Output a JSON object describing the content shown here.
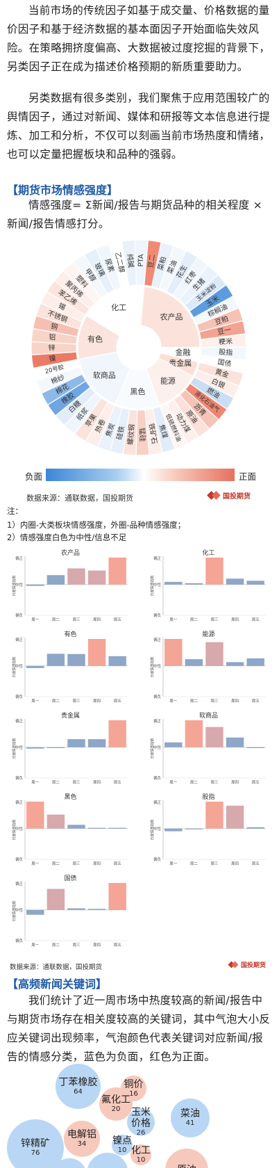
{
  "intro": {
    "p1": "当前市场的传统因子如基于成交量、价格数据的量价因子和基于经济数据的基本面因子开始面临失效风险。在策略拥挤度偏高、大数据被过度挖掘的背景下，另类因子正在成为描述价格预期的新质重要助力。",
    "p2": "另类数据有很多类别，我们聚焦于应用范围较广的舆情因子，通过对新闻、媒体和研报等文本信息进行提炼、加工和分析，不仅可以刻画当前市场热度和情绪，也可以定量把握板块和品种的强弱。"
  },
  "section1": {
    "title": "【期货市场情感强度】",
    "formula": "情感强度= Σ新闻/报告与期货品种的相关程度 × 新闻/报告情感打分。"
  },
  "sunburst": {
    "sectors": [
      {
        "name": "农产品",
        "color": "#fbe3dc",
        "items": [
          {
            "name": "豆二",
            "color": "#f08a75"
          },
          {
            "name": "菜粕",
            "color": "#e9f2fb"
          },
          {
            "name": "菜油",
            "color": "#f3f8fd"
          },
          {
            "name": "花生",
            "color": "#e3eefa"
          },
          {
            "name": "红枣",
            "color": "#f1f6fc"
          },
          {
            "name": "生猪",
            "color": "#eaf2fb"
          },
          {
            "name": "玉米淀粉",
            "color": "#dce9f8"
          },
          {
            "name": "玉米",
            "color": "#5e9ce0"
          },
          {
            "name": "棕榈油",
            "color": "#f3f8fd"
          },
          {
            "name": "豆粕",
            "color": "#f6c2b4"
          },
          {
            "name": "豆一",
            "color": "#f3a391"
          },
          {
            "name": "粳米",
            "color": "#fdf0ec"
          }
        ]
      },
      {
        "name": "金融",
        "color": "#ffffff",
        "items": [
          {
            "name": "股指",
            "color": "#f2f7fd"
          },
          {
            "name": "国债",
            "color": "#ffffff"
          }
        ]
      },
      {
        "name": "贵金属",
        "color": "#fbe0d8",
        "items": [
          {
            "name": "黄金",
            "color": "#fbe2da"
          },
          {
            "name": "白银",
            "color": "#fdeee9"
          }
        ]
      },
      {
        "name": "能源",
        "color": "#fdf0ec",
        "items": [
          {
            "name": "燃油",
            "color": "#c9ddf4"
          },
          {
            "name": "液化石油气",
            "color": "#ef8672"
          },
          {
            "name": "沥青",
            "color": "#f6c4b7"
          },
          {
            "name": "原油",
            "color": "#fbe1da"
          },
          {
            "name": "动力煤",
            "color": "#fdf0ec"
          },
          {
            "name": "低硫燃料油",
            "color": "#fef6f3"
          }
        ]
      },
      {
        "name": "黑色",
        "color": "#f8fbfe",
        "items": [
          {
            "name": "焦煤",
            "color": "#e2edf9"
          },
          {
            "name": "铁矿石",
            "color": "#fdeee9"
          },
          {
            "name": "锰硅",
            "color": "#f7d0c6"
          },
          {
            "name": "螺纹钢",
            "color": "#fbe3dc"
          },
          {
            "name": "硅铁",
            "color": "#e6f0fa"
          },
          {
            "name": "焦炭",
            "color": "#eaf2fb"
          }
        ]
      },
      {
        "name": "软商品",
        "color": "#f1f6fc",
        "items": [
          {
            "name": "热卷",
            "color": "#fdeee9"
          },
          {
            "name": "苹果",
            "color": "#fbe4dd"
          },
          {
            "name": "纸浆",
            "color": "#eef5fc"
          },
          {
            "name": "白糖",
            "color": "#e3edf9"
          },
          {
            "name": "橡胶",
            "color": "#6fa6e2"
          },
          {
            "name": "棉花",
            "color": "#8db9e8"
          },
          {
            "name": "棉纱",
            "color": "#f3f8fd"
          },
          {
            "name": "20号胶",
            "color": "#ffffff"
          }
        ]
      },
      {
        "name": "有色",
        "color": "#fbe4dd",
        "items": [
          {
            "name": "镍",
            "color": "#ec7b66"
          },
          {
            "name": "锌",
            "color": "#f8d3c8"
          },
          {
            "name": "铝",
            "color": "#f8d3c8"
          },
          {
            "name": "铜",
            "color": "#f5bfb1"
          },
          {
            "name": "不锈钢",
            "color": "#fbe2da"
          },
          {
            "name": "锡",
            "color": "#fdeee9"
          }
        ]
      },
      {
        "name": "化工",
        "color": "#ffffff",
        "items": [
          {
            "name": "苯乙烯",
            "color": "#fbe4dd"
          },
          {
            "name": "聚丙烯",
            "color": "#fdeee9"
          },
          {
            "name": "塑料",
            "color": "#fef5f2"
          },
          {
            "name": "甲醇",
            "color": "#f3f8fd"
          },
          {
            "name": "玻璃",
            "color": "#e6f0fa"
          },
          {
            "name": "尿素",
            "color": "#f0f6fc"
          },
          {
            "name": "乙二醇",
            "color": "#ffffff"
          },
          {
            "name": "纯碱",
            "color": "#e9f1fb"
          },
          {
            "name": "PTA",
            "color": "#eef5fc"
          }
        ]
      }
    ]
  },
  "legend": {
    "neg": "负面",
    "pos": "正面"
  },
  "source1": "数据来源：通联数据，国投期货",
  "logo": "国投期货",
  "notes": {
    "head": "注：",
    "n1": "1）内圈-大类板块情感强度，外圈-品种情感强度；",
    "n2": "2）情感强度白色为中性/信息不足"
  },
  "weekly": {
    "days": [
      "周一",
      "周二",
      "周三",
      "周四",
      "周五"
    ],
    "ylabel": "日度情感指数",
    "ticks": [
      "偏正",
      "中性",
      "偏负"
    ],
    "colors": {
      "positive": "#f4a596",
      "negative": "#8ea6c8",
      "mid": "#d7a8ac"
    },
    "charts": [
      {
        "title": "农产品",
        "values": [
          -0.05,
          0.35,
          0.6,
          0.52,
          1.0
        ]
      },
      {
        "title": "化工",
        "values": [
          0.1,
          0.05,
          1.0,
          0.22,
          0.14
        ]
      },
      {
        "title": "有色",
        "values": [
          -0.08,
          0.45,
          0.44,
          1.0,
          0.36
        ]
      },
      {
        "title": "能源",
        "values": [
          1.0,
          0.25,
          0.88,
          0.14,
          0.28
        ]
      },
      {
        "title": "贵金属",
        "values": [
          -0.05,
          -0.03,
          0.3,
          0.3,
          1.0
        ]
      },
      {
        "title": "软商品",
        "values": [
          0.18,
          1.0,
          0.75,
          0.36,
          -0.02
        ]
      },
      {
        "title": "黑色",
        "values": [
          1.0,
          0.52,
          0.14,
          0.03,
          0.03
        ]
      },
      {
        "title": "股指",
        "values": [
          -0.1,
          0.0,
          1.0,
          0.85,
          0.05
        ]
      },
      {
        "title": "国债",
        "values": [
          -0.18,
          0.78,
          0.06,
          0.04,
          1.0
        ]
      }
    ]
  },
  "source2": "数据来源：通联数据，国投期货",
  "section2": {
    "title": "【高频新闻关键词】",
    "text": "我们统计了近一周市场中热度较高的新闻/报告中与期货市场存在相关度较高的关键词，其中气泡大小反应关键词出现频率，气泡颜色代表关键词对应新闻/报告的情感分类，蓝色为负面，红色为正面。"
  },
  "bubbles": [
    {
      "label": "丁苯橡胶",
      "value": "64",
      "color": "#b9d7f4"
    },
    {
      "label": "铜价",
      "value": "16",
      "color": "#f6c9bd"
    },
    {
      "label": "氟化工",
      "value": "20",
      "color": "#f6c9bd"
    },
    {
      "label": "菜油",
      "value": "41",
      "color": "#b9d7f4"
    },
    {
      "label": "玉米价格",
      "value": "26",
      "color": "#b9d7f4"
    },
    {
      "label": "电解铝",
      "value": "34",
      "color": "#f6c9bd"
    },
    {
      "label": "锌精矿",
      "value": "76",
      "color": "#b9d7f4"
    },
    {
      "label": "镍点",
      "value": "10",
      "color": "#b9d7f4"
    },
    {
      "label": "化工",
      "value": "10",
      "color": "#f6c9bd"
    },
    {
      "label": "原油",
      "value": "",
      "color": "#f6c9bd"
    },
    {
      "label": "",
      "value": "",
      "color": "#b9d7f4"
    },
    {
      "label": "",
      "value": "",
      "color": "#b9d7f4"
    }
  ]
}
